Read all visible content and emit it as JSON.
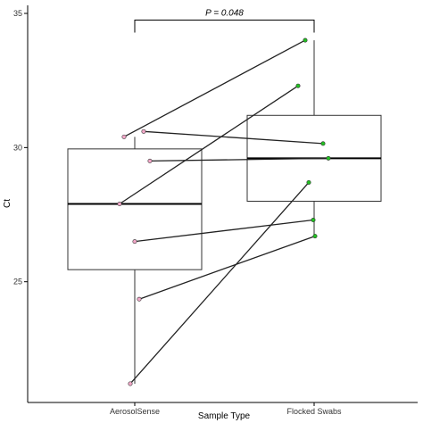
{
  "chart_data": {
    "type": "box",
    "xlabel": "Sample Type",
    "ylabel": "Ct",
    "categories": [
      "AerosolSense",
      "Flocked Swabs"
    ],
    "ylim": [
      20.5,
      35.3
    ],
    "yticks": [
      25,
      30,
      35
    ],
    "grid": false,
    "boxes": [
      {
        "category": "AerosolSense",
        "q1": 25.45,
        "median": 27.9,
        "q3": 29.95,
        "whisker_low": 21.2,
        "whisker_high": 30.4,
        "point_color": "#f2a8c8"
      },
      {
        "category": "Flocked Swabs",
        "q1": 28.0,
        "median": 29.6,
        "q3": 31.2,
        "whisker_low": 26.7,
        "whisker_high": 34.0,
        "point_color": "#22c022"
      }
    ],
    "pairs": [
      {
        "AerosolSense": 30.4,
        "Flocked Swabs": 34.0
      },
      {
        "AerosolSense": 30.6,
        "Flocked Swabs": 30.15
      },
      {
        "AerosolSense": 29.5,
        "Flocked Swabs": 29.6
      },
      {
        "AerosolSense": 27.9,
        "Flocked Swabs": 32.3
      },
      {
        "AerosolSense": 26.5,
        "Flocked Swabs": 27.3
      },
      {
        "AerosolSense": 24.35,
        "Flocked Swabs": 26.7
      },
      {
        "AerosolSense": 21.2,
        "Flocked Swabs": 28.7
      }
    ],
    "annotation": {
      "text": "P = 0.048",
      "between": [
        "AerosolSense",
        "Flocked Swabs"
      ],
      "bracket_y": 34.75
    }
  }
}
